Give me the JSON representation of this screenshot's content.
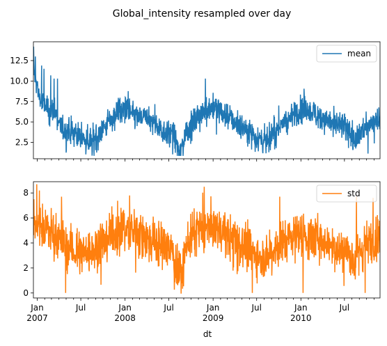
{
  "chart_data": {
    "title": "Global_intensity resampled over day",
    "xlabel": "dt",
    "x_range": [
      "2006-12-16",
      "2010-11-26"
    ],
    "x_ticks_month": [
      "Jan",
      "Jul",
      "Jan",
      "Jul",
      "Jan",
      "Jul",
      "Jan",
      "Jul"
    ],
    "x_ticks_year": [
      "2007",
      "",
      "2008",
      "",
      "2009",
      "",
      "2010",
      ""
    ],
    "x_tick_dates": [
      "2007-01-01",
      "2007-07-01",
      "2008-01-01",
      "2008-07-01",
      "2009-01-01",
      "2009-07-01",
      "2010-01-01",
      "2010-07-01"
    ],
    "subplots": [
      {
        "type": "line",
        "series_name": "mean",
        "color": "#1f77b4",
        "legend_position": "upper right",
        "ylim": [
          0.5,
          14.8
        ],
        "yticks": [
          "2.5",
          "5.0",
          "7.5",
          "10.0",
          "12.5"
        ],
        "ytick_values": [
          2.5,
          5.0,
          7.5,
          10.0,
          12.5
        ],
        "monthly_mean": [
          [
            "2006-12",
            11.5
          ],
          [
            "2007-01",
            7.5
          ],
          [
            "2007-02",
            6.5
          ],
          [
            "2007-03",
            6.3
          ],
          [
            "2007-04",
            4.0
          ],
          [
            "2007-05",
            3.9
          ],
          [
            "2007-06",
            3.5
          ],
          [
            "2007-07",
            2.9
          ],
          [
            "2007-08",
            2.6
          ],
          [
            "2007-09",
            3.6
          ],
          [
            "2007-10",
            4.6
          ],
          [
            "2007-11",
            5.8
          ],
          [
            "2007-12",
            6.6
          ],
          [
            "2008-01",
            6.4
          ],
          [
            "2008-02",
            5.6
          ],
          [
            "2008-03",
            5.5
          ],
          [
            "2008-04",
            5.1
          ],
          [
            "2008-05",
            4.4
          ],
          [
            "2008-06",
            3.8
          ],
          [
            "2008-07",
            3.6
          ],
          [
            "2008-08",
            1.2
          ],
          [
            "2008-09",
            4.0
          ],
          [
            "2008-10",
            5.0
          ],
          [
            "2008-11",
            6.0
          ],
          [
            "2008-12",
            6.9
          ],
          [
            "2009-01",
            6.6
          ],
          [
            "2009-02",
            5.9
          ],
          [
            "2009-03",
            5.6
          ],
          [
            "2009-04",
            4.6
          ],
          [
            "2009-05",
            4.2
          ],
          [
            "2009-06",
            3.6
          ],
          [
            "2009-07",
            2.9
          ],
          [
            "2009-08",
            2.5
          ],
          [
            "2009-09",
            3.9
          ],
          [
            "2009-10",
            4.8
          ],
          [
            "2009-11",
            5.4
          ],
          [
            "2009-12",
            6.3
          ],
          [
            "2010-01",
            6.5
          ],
          [
            "2010-02",
            6.2
          ],
          [
            "2010-03",
            5.8
          ],
          [
            "2010-04",
            5.3
          ],
          [
            "2010-05",
            4.8
          ],
          [
            "2010-06",
            4.6
          ],
          [
            "2010-07",
            4.0
          ],
          [
            "2010-08",
            2.3
          ],
          [
            "2010-09",
            4.2
          ],
          [
            "2010-10",
            4.9
          ],
          [
            "2010-11",
            5.4
          ]
        ],
        "daily_spread": 1.0,
        "spikes": [
          [
            "2006-12-17",
            14.2
          ],
          [
            "2006-12-24",
            13.0
          ],
          [
            "2007-01-19",
            11.9
          ],
          [
            "2007-01-29",
            11.5
          ],
          [
            "2007-02-26",
            10.7
          ],
          [
            "2007-03-12",
            10.3
          ],
          [
            "2007-03-26",
            10.3
          ],
          [
            "2008-11-30",
            10.3
          ],
          [
            "2009-09-20",
            1.8
          ],
          [
            "2010-01-15",
            8.4
          ]
        ]
      },
      {
        "type": "line",
        "series_name": "std",
        "color": "#ff7f0e",
        "legend_position": "upper right",
        "ylim": [
          -0.4,
          8.9
        ],
        "yticks": [
          "0",
          "2",
          "4",
          "6",
          "8"
        ],
        "ytick_values": [
          0,
          2,
          4,
          6,
          8
        ],
        "monthly_mean": [
          [
            "2006-12",
            6.0
          ],
          [
            "2007-01",
            5.5
          ],
          [
            "2007-02",
            5.0
          ],
          [
            "2007-03",
            4.8
          ],
          [
            "2007-04",
            4.0
          ],
          [
            "2007-05",
            3.6
          ],
          [
            "2007-06",
            3.4
          ],
          [
            "2007-07",
            3.3
          ],
          [
            "2007-08",
            3.3
          ],
          [
            "2007-09",
            3.8
          ],
          [
            "2007-10",
            4.4
          ],
          [
            "2007-11",
            4.9
          ],
          [
            "2007-12",
            5.2
          ],
          [
            "2008-01",
            5.0
          ],
          [
            "2008-02",
            4.8
          ],
          [
            "2008-03",
            4.5
          ],
          [
            "2008-04",
            4.3
          ],
          [
            "2008-05",
            3.9
          ],
          [
            "2008-06",
            3.6
          ],
          [
            "2008-07",
            3.4
          ],
          [
            "2008-08",
            1.0
          ],
          [
            "2008-09",
            4.1
          ],
          [
            "2008-10",
            4.6
          ],
          [
            "2008-11",
            5.1
          ],
          [
            "2008-12",
            5.4
          ],
          [
            "2009-01",
            5.2
          ],
          [
            "2009-02",
            4.9
          ],
          [
            "2009-03",
            4.4
          ],
          [
            "2009-04",
            4.0
          ],
          [
            "2009-05",
            3.6
          ],
          [
            "2009-06",
            3.3
          ],
          [
            "2009-07",
            3.0
          ],
          [
            "2009-08",
            2.9
          ],
          [
            "2009-09",
            3.6
          ],
          [
            "2009-10",
            4.1
          ],
          [
            "2009-11",
            4.5
          ],
          [
            "2009-12",
            4.8
          ],
          [
            "2010-01",
            4.6
          ],
          [
            "2010-02",
            4.5
          ],
          [
            "2010-03",
            4.4
          ],
          [
            "2010-04",
            4.2
          ],
          [
            "2010-05",
            3.8
          ],
          [
            "2010-06",
            3.6
          ],
          [
            "2010-07",
            3.4
          ],
          [
            "2010-08",
            2.5
          ],
          [
            "2010-09",
            3.7
          ],
          [
            "2010-10",
            4.1
          ],
          [
            "2010-11",
            4.4
          ]
        ],
        "daily_spread": 1.1,
        "spikes": [
          [
            "2007-01-10",
            8.2
          ],
          [
            "2007-04-29",
            0.0
          ],
          [
            "2007-04-12",
            7.7
          ],
          [
            "2008-01-20",
            7.8
          ],
          [
            "2008-11-25",
            8.5
          ],
          [
            "2009-06-13",
            0.0
          ],
          [
            "2009-10-05",
            7.7
          ],
          [
            "2010-01-10",
            0.0
          ],
          [
            "2010-08-20",
            7.7
          ],
          [
            "2010-09-25",
            0.0
          ],
          [
            "2010-10-28",
            7.6
          ]
        ]
      }
    ]
  }
}
